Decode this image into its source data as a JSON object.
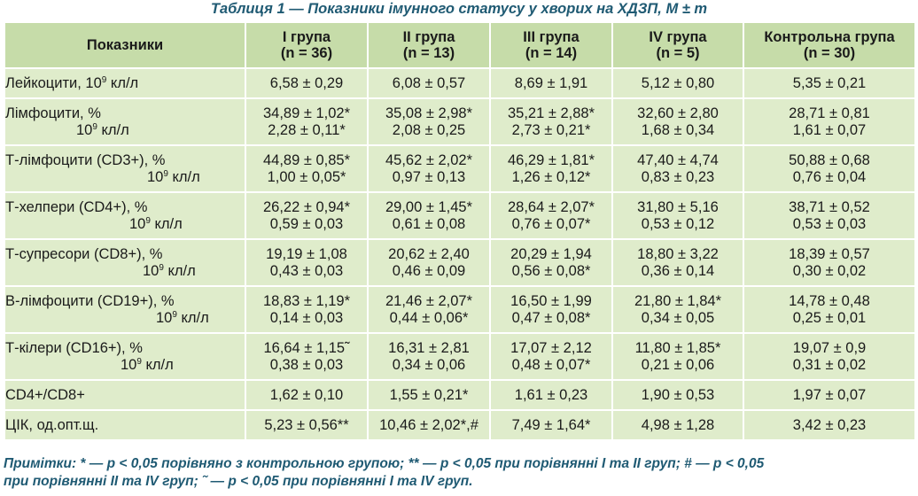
{
  "caption": "Таблиця 1 — Показники імунного статусу у хворих на ХДЗП, M ± m",
  "headers": [
    {
      "l1": "Показники",
      "l2": ""
    },
    {
      "l1": "І група",
      "l2": "(n = 36)"
    },
    {
      "l1": "ІІ група",
      "l2": "(n = 13)"
    },
    {
      "l1": "ІІІ група",
      "l2": "(n = 14)"
    },
    {
      "l1": "IV група",
      "l2": "(n = 5)"
    },
    {
      "l1": "Контрольна група",
      "l2": "(n = 30)"
    }
  ],
  "unit_sup": "9",
  "rows": [
    {
      "label1": "Лейкоцити, 10",
      "label1_sup": "9",
      "label1_after": " кл/л",
      "label2": "",
      "values": [
        [
          "6,58 ± 0,29",
          ""
        ],
        [
          "6,08 ± 0,57",
          ""
        ],
        [
          "8,69 ± 1,91",
          ""
        ],
        [
          "5,12 ± 0,80",
          ""
        ],
        [
          "5,35 ± 0,21",
          ""
        ]
      ]
    },
    {
      "label1": "Лімфоцити, %",
      "label2": "кл/л",
      "values": [
        [
          "34,89 ± 1,02*",
          "2,28 ± 0,11*"
        ],
        [
          "35,08 ± 2,98*",
          "2,08 ± 0,25"
        ],
        [
          "35,21 ± 2,88*",
          "2,73 ± 0,21*"
        ],
        [
          "32,60 ± 2,80",
          "1,68 ± 0,34"
        ],
        [
          "28,71 ± 0,81",
          "1,61 ± 0,07"
        ]
      ]
    },
    {
      "label1": "Т-лімфоцити (CD3+), %",
      "label2": "кл/л",
      "values": [
        [
          "44,89 ± 0,85*",
          "1,00 ± 0,05*"
        ],
        [
          "45,62 ± 2,02*",
          "0,97 ± 0,13"
        ],
        [
          "46,29 ± 1,81*",
          "1,26 ± 0,12*"
        ],
        [
          "47,40 ± 4,74",
          "0,83 ± 0,23"
        ],
        [
          "50,88 ± 0,68",
          "0,76 ± 0,04"
        ]
      ]
    },
    {
      "label1": "Т-хелпери (CD4+), %",
      "label2": "кл/л",
      "values": [
        [
          "26,22 ± 0,94*",
          "0,59 ± 0,03"
        ],
        [
          "29,00 ± 1,45*",
          "0,61 ± 0,08"
        ],
        [
          "28,64 ± 2,07*",
          "0,76 ± 0,07*"
        ],
        [
          "31,80 ± 5,16",
          "0,53 ± 0,12"
        ],
        [
          "38,71 ± 0,52",
          "0,53 ± 0,03"
        ]
      ]
    },
    {
      "label1": "Т-супресори (CD8+), %",
      "label2": "кл/л",
      "values": [
        [
          "19,19 ± 1,08",
          "0,43 ± 0,03"
        ],
        [
          "20,62 ± 2,40",
          "0,46 ± 0,09"
        ],
        [
          "20,29 ± 1,94",
          "0,56 ± 0,08*"
        ],
        [
          "18,80 ± 3,22",
          "0,36 ± 0,14"
        ],
        [
          "18,39 ± 0,57",
          "0,30 ± 0,02"
        ]
      ]
    },
    {
      "label1": "В-лімфоцити (CD19+), %",
      "label2": "кл/л",
      "values": [
        [
          "18,83 ± 1,19*",
          "0,14 ± 0,03"
        ],
        [
          "21,46 ± 2,07*",
          "0,44 ± 0,06*"
        ],
        [
          "16,50 ± 1,99",
          "0,47 ± 0,08*"
        ],
        [
          "21,80 ± 1,84*",
          "0,34 ± 0,05"
        ],
        [
          "14,78 ± 0,48",
          "0,25 ± 0,01"
        ]
      ]
    },
    {
      "label1": "Т-кілери (CD16+), %",
      "label2": "кл/л",
      "values": [
        [
          "16,64 ± 1,15˜",
          "0,38 ± 0,03"
        ],
        [
          "16,31 ± 2,81",
          "0,34 ± 0,06"
        ],
        [
          "17,07 ± 2,12",
          "0,48 ± 0,07*"
        ],
        [
          "11,80 ± 1,85*",
          "0,21 ± 0,06"
        ],
        [
          "19,07 ± 0,9",
          "0,31 ± 0,02"
        ]
      ]
    },
    {
      "label1": "CD4+/CD8+",
      "label2": "",
      "values": [
        [
          "1,62 ± 0,10",
          ""
        ],
        [
          "1,55 ± 0,21*",
          ""
        ],
        [
          "1,61 ± 0,23",
          ""
        ],
        [
          "1,90 ± 0,53",
          ""
        ],
        [
          "1,97 ± 0,07",
          ""
        ]
      ]
    },
    {
      "label1": "ЦІК, од.опт.щ.",
      "label2": "",
      "values": [
        [
          "5,23 ± 0,56**",
          ""
        ],
        [
          "10,46 ± 2,02*,#",
          ""
        ],
        [
          "7,49 ± 1,64*",
          ""
        ],
        [
          "4,98 ± 1,28",
          ""
        ],
        [
          "3,42 ± 0,23",
          ""
        ]
      ]
    }
  ],
  "notes": {
    "line1": "Примітки: * — p < 0,05 порівняно з контрольною групою; ** — p < 0,05 при порівнянні І та ІІ груп; # — p < 0,05",
    "line2": "при порівнянні ІІ та IV груп; ˜ — p < 0,05 при порівнянні І та IV груп."
  },
  "colors": {
    "header_bg": "#c6dca9",
    "cell_bg": "#dfeccb",
    "caption_text": "#1f5a73",
    "grid_lines": "#ffffff"
  }
}
